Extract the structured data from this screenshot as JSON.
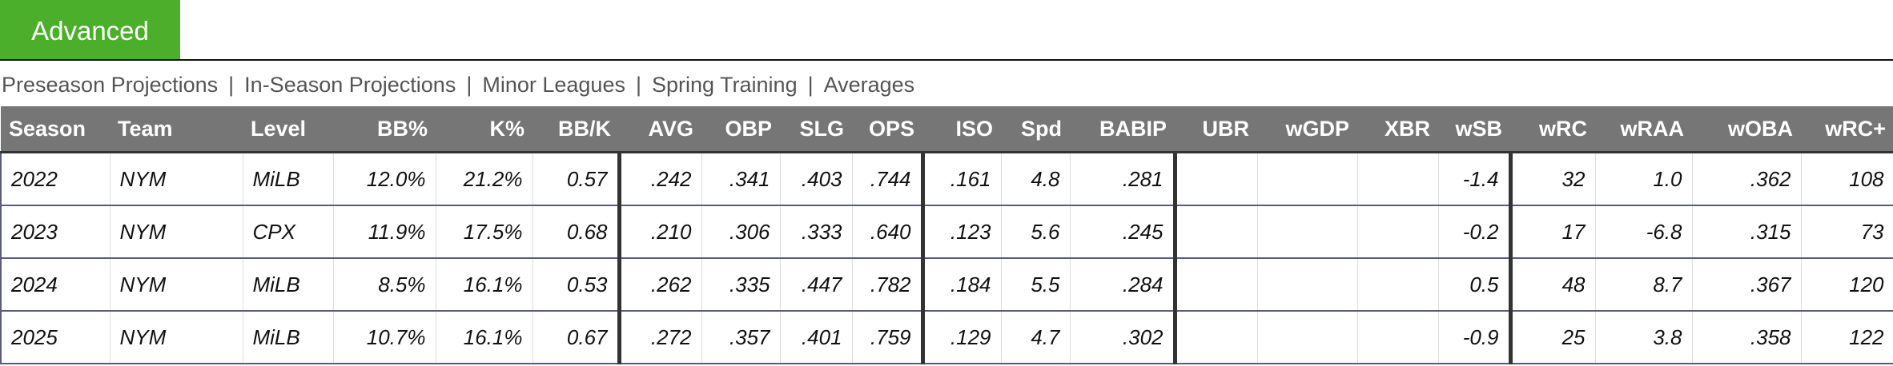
{
  "tab": {
    "label": "Advanced"
  },
  "nav": {
    "links": [
      "Preseason Projections",
      "In-Season Projections",
      "Minor Leagues",
      "Spring Training",
      "Averages"
    ],
    "separator": "|"
  },
  "table": {
    "headers": [
      "Season",
      "Team",
      "Level",
      "BB%",
      "K%",
      "BB/K",
      "AVG",
      "OBP",
      "SLG",
      "OPS",
      "ISO",
      "Spd",
      "BABIP",
      "UBR",
      "wGDP",
      "XBR",
      "wSB",
      "wRC",
      "wRAA",
      "wOBA",
      "wRC+"
    ],
    "rows": [
      [
        "2022",
        "NYM",
        "MiLB",
        "12.0%",
        "21.2%",
        "0.57",
        ".242",
        ".341",
        ".403",
        ".744",
        ".161",
        "4.8",
        ".281",
        null,
        null,
        null,
        "-1.4",
        "32",
        "1.0",
        ".362",
        "108"
      ],
      [
        "2023",
        "NYM",
        "CPX",
        "11.9%",
        "17.5%",
        "0.68",
        ".210",
        ".306",
        ".333",
        ".640",
        ".123",
        "5.6",
        ".245",
        null,
        null,
        null,
        "-0.2",
        "17",
        "-6.8",
        ".315",
        "73"
      ],
      [
        "2024",
        "NYM",
        "MiLB",
        "8.5%",
        "16.1%",
        "0.53",
        ".262",
        ".335",
        ".447",
        ".782",
        ".184",
        "5.5",
        ".284",
        null,
        null,
        null,
        "0.5",
        "48",
        "8.7",
        ".367",
        "120"
      ],
      [
        "2025",
        "NYM",
        "MiLB",
        "10.7%",
        "16.1%",
        "0.67",
        ".272",
        ".357",
        ".401",
        ".759",
        ".129",
        "4.7",
        ".302",
        null,
        null,
        null,
        "-0.9",
        "25",
        "3.8",
        ".358",
        "122"
      ]
    ]
  }
}
